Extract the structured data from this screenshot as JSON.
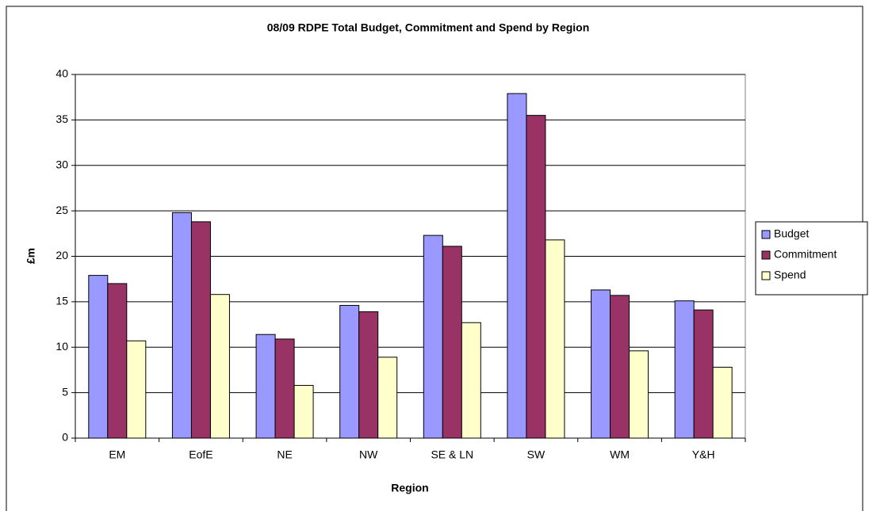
{
  "chart_data": {
    "type": "bar",
    "title": "08/09 RDPE Total Budget, Commitment and Spend by Region",
    "x_label": "Region",
    "y_label": "£m",
    "categories": [
      "EM",
      "EofE",
      "NE",
      "NW",
      "SE & LN",
      "SW",
      "WM",
      "Y&H"
    ],
    "series": [
      {
        "name": "Budget",
        "color": "#9999ff",
        "values": [
          17.9,
          24.8,
          11.4,
          14.6,
          22.3,
          37.9,
          16.3,
          15.1
        ]
      },
      {
        "name": "Commitment",
        "color": "#993366",
        "values": [
          17.0,
          23.8,
          10.9,
          13.9,
          21.1,
          35.5,
          15.7,
          14.1
        ]
      },
      {
        "name": "Spend",
        "color": "#ffffcc",
        "values": [
          10.7,
          15.8,
          5.8,
          8.9,
          12.7,
          21.8,
          9.6,
          7.8
        ]
      }
    ],
    "ylim": [
      0,
      40
    ],
    "yticks": [
      0,
      5,
      10,
      15,
      20,
      25,
      30,
      35,
      40
    ],
    "grid": true,
    "legend": "right"
  }
}
